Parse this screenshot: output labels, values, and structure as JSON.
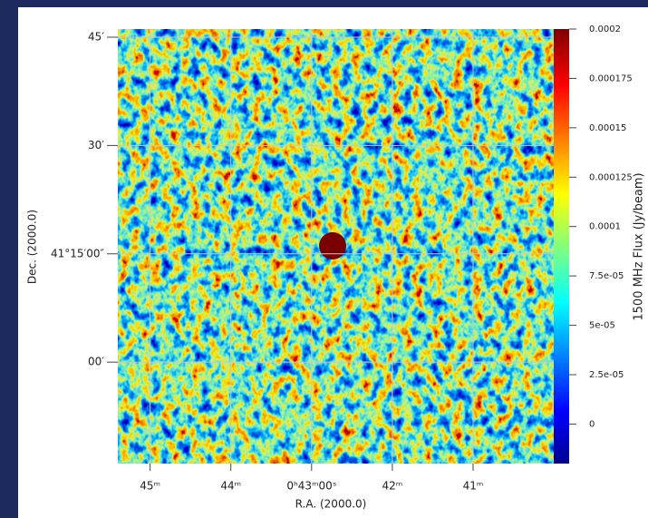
{
  "chart_data": {
    "type": "image",
    "xlabel": "R.A. (2000.0)",
    "ylabel": "Dec. (2000.0)",
    "xlim": [
      45.4,
      39.81
    ],
    "ylim": [
      -14.05,
      46.13
    ],
    "xticks": [
      {
        "value": 45,
        "label": "45ᵐ"
      },
      {
        "value": 44,
        "label": "44ᵐ"
      },
      {
        "value": 43,
        "label": "0ʰ43ᵐ00ˢ"
      },
      {
        "value": 42,
        "label": "42ᵐ"
      },
      {
        "value": 41,
        "label": "41ᵐ"
      }
    ],
    "yticks": [
      {
        "value": 45,
        "label": "45′"
      },
      {
        "value": 30,
        "label": "30′"
      },
      {
        "value": 15,
        "label": "41°15′00″"
      },
      {
        "value": 0,
        "label": "00′"
      }
    ],
    "grid": true,
    "colorbar": {
      "label": "1500 MHz Flux (Jy/beam)",
      "clim": [
        -2e-05,
        0.0002
      ],
      "ticks": [
        0.0002,
        0.000175,
        0.00015,
        0.000125,
        0.0001,
        {
          "value": 7.5e-05,
          "label": "7.5e-05"
        },
        {
          "value": 5e-05,
          "label": "5e-05"
        },
        {
          "value": 2.5e-05,
          "label": "2.5e-05"
        },
        0
      ]
    }
  }
}
